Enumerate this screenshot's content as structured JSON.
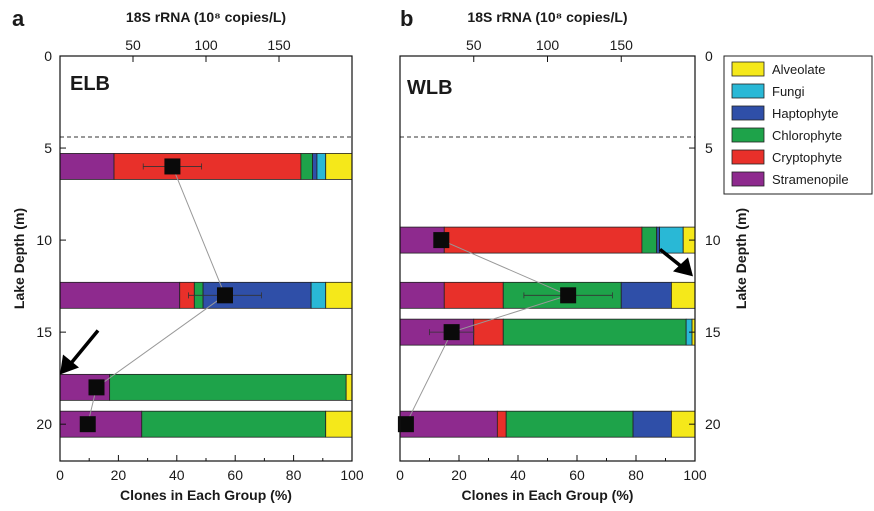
{
  "panel_letters": [
    "a",
    "b"
  ],
  "colors": {
    "Alveolate": "#f5e81a",
    "Fungi": "#29b8d6",
    "Haptophyte": "#2f4fa8",
    "Chlorophyte": "#1ea34a",
    "Cryptophyte": "#e8302a",
    "Stramenopile": "#8e2a8e"
  },
  "legend": [
    "Alveolate",
    "Fungi",
    "Haptophyte",
    "Chlorophyte",
    "Cryptophyte",
    "Stramenopile"
  ],
  "chart_data": [
    {
      "type": "bar",
      "orientation": "horizontal stacked",
      "panel": "a",
      "title": "ELB",
      "xlabel": "Clones in Each Group (%)",
      "x2label": "18S rRNA (10⁸ copies/L)",
      "ylabel": "Lake Depth (m)",
      "xlim": [
        0,
        100
      ],
      "x2lim": [
        0,
        200
      ],
      "ylim": [
        22,
        0
      ],
      "xticks": [
        0,
        20,
        40,
        60,
        80,
        100
      ],
      "x2ticks": [
        50,
        100,
        150
      ],
      "yticks": [
        0,
        5,
        10,
        15,
        20
      ],
      "dashed_line_depth": 4.4,
      "arrow_depth": 17.3,
      "depths": [
        6,
        13,
        18,
        20
      ],
      "series": [
        {
          "name": "Stramenopile",
          "values": [
            18.5,
            41,
            17,
            28
          ]
        },
        {
          "name": "Cryptophyte",
          "values": [
            64,
            5,
            0,
            0
          ]
        },
        {
          "name": "Chlorophyte",
          "values": [
            4,
            3,
            81,
            63
          ]
        },
        {
          "name": "Haptophyte",
          "values": [
            1.5,
            37,
            0,
            0
          ]
        },
        {
          "name": "Fungi",
          "values": [
            3,
            5,
            0,
            0
          ]
        },
        {
          "name": "Alveolate",
          "values": [
            9,
            9,
            2,
            9
          ]
        }
      ],
      "rrna": {
        "depths": [
          6,
          13,
          18,
          20
        ],
        "values": [
          77,
          113,
          25,
          19
        ],
        "errors": [
          20,
          25,
          0,
          0
        ]
      }
    },
    {
      "type": "bar",
      "orientation": "horizontal stacked",
      "panel": "b",
      "title": "WLB",
      "xlabel": "Clones in Each Group (%)",
      "x2label": "18S rRNA (10⁸ copies/L)",
      "ylabel": "Lake Depth (m)",
      "xlim": [
        0,
        100
      ],
      "x2lim": [
        0,
        200
      ],
      "ylim": [
        22,
        0
      ],
      "xticks": [
        0,
        20,
        40,
        60,
        80,
        100
      ],
      "x2ticks": [
        50,
        100,
        150
      ],
      "yticks": [
        0,
        5,
        10,
        15,
        20
      ],
      "dashed_line_depth": 4.4,
      "arrow_depth": 11.7,
      "depths": [
        10,
        13,
        15,
        20
      ],
      "series": [
        {
          "name": "Stramenopile",
          "values": [
            15,
            15,
            25,
            33
          ]
        },
        {
          "name": "Cryptophyte",
          "values": [
            67,
            20,
            10,
            3
          ]
        },
        {
          "name": "Chlorophyte",
          "values": [
            5,
            40,
            62,
            43
          ]
        },
        {
          "name": "Haptophyte",
          "values": [
            1,
            17,
            0,
            13
          ]
        },
        {
          "name": "Fungi",
          "values": [
            8,
            0,
            2,
            0
          ]
        },
        {
          "name": "Alveolate",
          "values": [
            4,
            8,
            1,
            8
          ]
        }
      ],
      "rrna": {
        "depths": [
          10,
          13,
          15,
          20
        ],
        "values": [
          28,
          114,
          35,
          4
        ],
        "errors": [
          0,
          30,
          15,
          0
        ]
      }
    }
  ]
}
